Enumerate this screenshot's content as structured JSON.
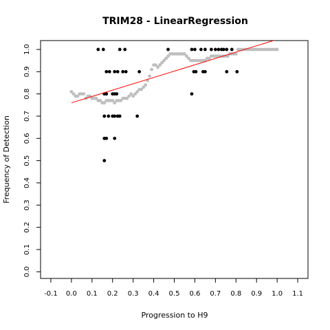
{
  "chart_data": {
    "type": "scatter",
    "title": "TRIM28 - LinearRegression",
    "xlabel": "Progression to H9",
    "ylabel": "Frequency of Detection",
    "xlim": [
      -0.15,
      1.15
    ],
    "ylim": [
      -0.03,
      1.04
    ],
    "x_ticks": [
      "-0.1",
      "0.0",
      "0.1",
      "0.2",
      "0.3",
      "0.4",
      "0.5",
      "0.6",
      "0.7",
      "0.8",
      "0.9",
      "1.0",
      "1.1"
    ],
    "y_ticks": [
      "0.0",
      "0.1",
      "0.2",
      "0.3",
      "0.4",
      "0.5",
      "0.6",
      "0.7",
      "0.8",
      "0.9",
      "1.0"
    ],
    "grid": false,
    "legend": "none",
    "colors": {
      "observed": "#000000",
      "smoothed": "#bebebe",
      "regression": "#ff0000"
    },
    "series": [
      {
        "values": [
          [
            0.13,
            1.0
          ],
          [
            0.155,
            1.0
          ],
          [
            0.235,
            1.0
          ],
          [
            0.26,
            1.0
          ],
          [
            0.47,
            1.0
          ],
          [
            0.585,
            1.0
          ],
          [
            0.6,
            1.0
          ],
          [
            0.63,
            1.0
          ],
          [
            0.65,
            1.0
          ],
          [
            0.68,
            1.0
          ],
          [
            0.7,
            1.0
          ],
          [
            0.715,
            1.0
          ],
          [
            0.73,
            1.0
          ],
          [
            0.74,
            1.0
          ],
          [
            0.755,
            1.0
          ],
          [
            0.78,
            1.0
          ],
          [
            0.17,
            0.9
          ],
          [
            0.185,
            0.9
          ],
          [
            0.21,
            0.9
          ],
          [
            0.225,
            0.9
          ],
          [
            0.25,
            0.9
          ],
          [
            0.265,
            0.9
          ],
          [
            0.33,
            0.9
          ],
          [
            0.595,
            0.9
          ],
          [
            0.605,
            0.9
          ],
          [
            0.64,
            0.9
          ],
          [
            0.65,
            0.9
          ],
          [
            0.755,
            0.9
          ],
          [
            0.805,
            0.9
          ],
          [
            0.16,
            0.8
          ],
          [
            0.17,
            0.8
          ],
          [
            0.2,
            0.8
          ],
          [
            0.21,
            0.8
          ],
          [
            0.22,
            0.8
          ],
          [
            0.585,
            0.8
          ],
          [
            0.16,
            0.7
          ],
          [
            0.18,
            0.7
          ],
          [
            0.2,
            0.7
          ],
          [
            0.21,
            0.7
          ],
          [
            0.225,
            0.7
          ],
          [
            0.235,
            0.7
          ],
          [
            0.32,
            0.7
          ],
          [
            0.16,
            0.6
          ],
          [
            0.17,
            0.6
          ],
          [
            0.21,
            0.6
          ],
          [
            0.16,
            0.5
          ]
        ]
      },
      {
        "values": [
          [
            0.0,
            0.81
          ],
          [
            0.01,
            0.8
          ],
          [
            0.02,
            0.79
          ],
          [
            0.03,
            0.79
          ],
          [
            0.04,
            0.8
          ],
          [
            0.05,
            0.8
          ],
          [
            0.06,
            0.8
          ],
          [
            0.07,
            0.78
          ],
          [
            0.08,
            0.79
          ],
          [
            0.09,
            0.79
          ],
          [
            0.1,
            0.78
          ],
          [
            0.11,
            0.78
          ],
          [
            0.12,
            0.78
          ],
          [
            0.13,
            0.77
          ],
          [
            0.14,
            0.77
          ],
          [
            0.15,
            0.76
          ],
          [
            0.16,
            0.76
          ],
          [
            0.17,
            0.77
          ],
          [
            0.18,
            0.77
          ],
          [
            0.19,
            0.77
          ],
          [
            0.2,
            0.77
          ],
          [
            0.21,
            0.76
          ],
          [
            0.22,
            0.77
          ],
          [
            0.23,
            0.77
          ],
          [
            0.24,
            0.77
          ],
          [
            0.25,
            0.78
          ],
          [
            0.26,
            0.78
          ],
          [
            0.27,
            0.78
          ],
          [
            0.28,
            0.79
          ],
          [
            0.29,
            0.8
          ],
          [
            0.3,
            0.79
          ],
          [
            0.31,
            0.8
          ],
          [
            0.32,
            0.81
          ],
          [
            0.33,
            0.82
          ],
          [
            0.34,
            0.82
          ],
          [
            0.35,
            0.83
          ],
          [
            0.36,
            0.84
          ],
          [
            0.37,
            0.86
          ],
          [
            0.38,
            0.88
          ],
          [
            0.39,
            0.91
          ],
          [
            0.4,
            0.93
          ],
          [
            0.41,
            0.93
          ],
          [
            0.42,
            0.92
          ],
          [
            0.43,
            0.93
          ],
          [
            0.44,
            0.94
          ],
          [
            0.45,
            0.95
          ],
          [
            0.46,
            0.96
          ],
          [
            0.47,
            0.97
          ],
          [
            0.48,
            0.98
          ],
          [
            0.49,
            0.98
          ],
          [
            0.5,
            0.98
          ],
          [
            0.51,
            0.98
          ],
          [
            0.52,
            0.98
          ],
          [
            0.53,
            0.98
          ],
          [
            0.54,
            0.98
          ],
          [
            0.55,
            0.98
          ],
          [
            0.56,
            0.97
          ],
          [
            0.57,
            0.96
          ],
          [
            0.58,
            0.95
          ],
          [
            0.59,
            0.95
          ],
          [
            0.6,
            0.95
          ],
          [
            0.61,
            0.95
          ],
          [
            0.62,
            0.95
          ],
          [
            0.63,
            0.95
          ],
          [
            0.64,
            0.95
          ],
          [
            0.65,
            0.95
          ],
          [
            0.66,
            0.96
          ],
          [
            0.67,
            0.96
          ],
          [
            0.68,
            0.97
          ],
          [
            0.69,
            0.97
          ],
          [
            0.7,
            0.97
          ],
          [
            0.71,
            0.97
          ],
          [
            0.72,
            0.97
          ],
          [
            0.73,
            0.97
          ],
          [
            0.74,
            0.97
          ],
          [
            0.75,
            0.97
          ],
          [
            0.76,
            0.97
          ],
          [
            0.77,
            0.98
          ],
          [
            0.78,
            0.98
          ],
          [
            0.79,
            0.98
          ],
          [
            0.8,
            0.98
          ],
          [
            0.81,
            1.0
          ],
          [
            0.82,
            1.0
          ],
          [
            0.83,
            1.0
          ],
          [
            0.84,
            1.0
          ],
          [
            0.85,
            1.0
          ],
          [
            0.86,
            1.0
          ],
          [
            0.87,
            1.0
          ],
          [
            0.88,
            1.0
          ],
          [
            0.89,
            1.0
          ],
          [
            0.9,
            1.0
          ],
          [
            0.91,
            1.0
          ],
          [
            0.92,
            1.0
          ],
          [
            0.93,
            1.0
          ],
          [
            0.94,
            1.0
          ],
          [
            0.95,
            1.0
          ],
          [
            0.96,
            1.0
          ],
          [
            0.97,
            1.0
          ],
          [
            0.98,
            1.0
          ],
          [
            0.99,
            1.0
          ],
          [
            1.0,
            1.0
          ]
        ]
      },
      {
        "type": "line",
        "values": [
          [
            0.0,
            0.76
          ],
          [
            1.0,
            1.045
          ]
        ]
      }
    ]
  }
}
